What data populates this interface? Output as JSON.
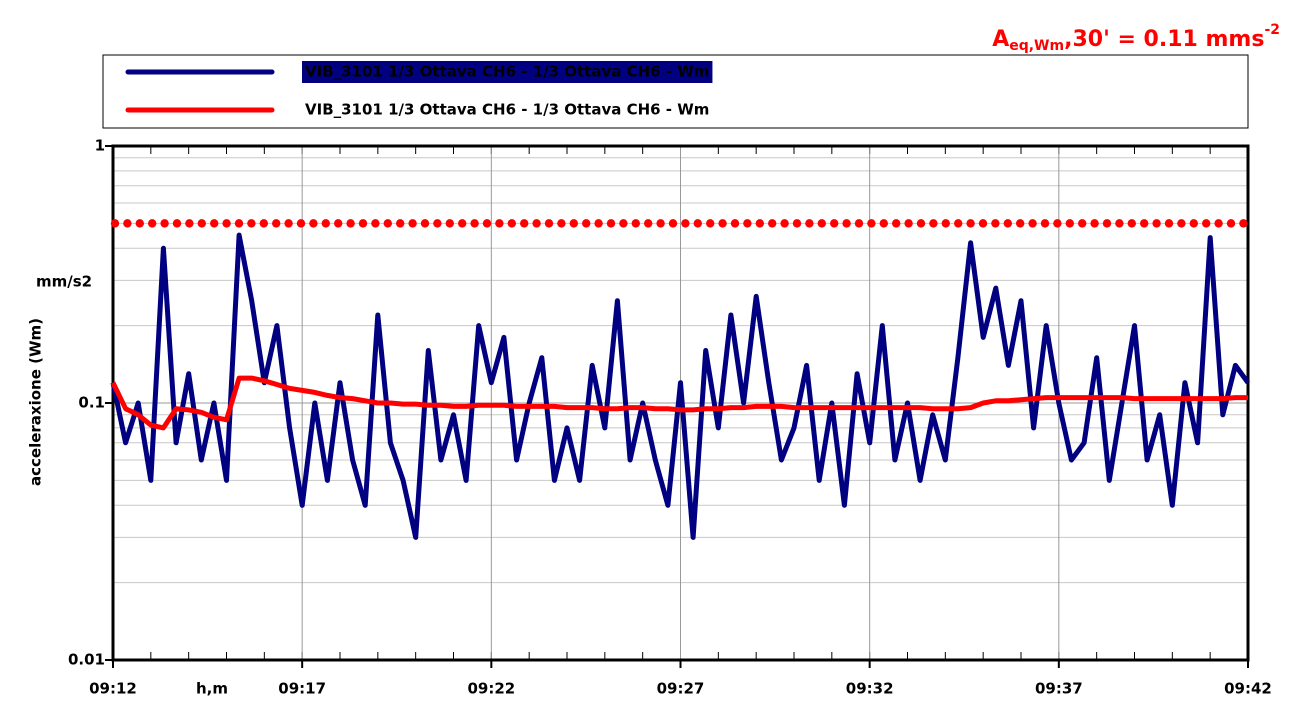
{
  "chart_data": {
    "type": "line",
    "annotation": {
      "main": "A",
      "sub": "eq,Wm",
      "rest": ",30' = 0.11 mms",
      "sup": "-2"
    },
    "y_label": "acceleraxione (Wm)",
    "y_unit": "mm/s2",
    "x_label": "h,m",
    "log_y": true,
    "grid": true,
    "ylim": [
      0.01,
      1
    ],
    "yticks": [
      0.01,
      0.1,
      1
    ],
    "xlim": [
      "09:12:00",
      "09:42:00"
    ],
    "xticks": [
      "09:12",
      "09:17",
      "09:22",
      "09:27",
      "09:32",
      "09:37",
      "09:42"
    ],
    "reference_line": {
      "value": 0.5,
      "color": "#ff0000"
    },
    "x": [
      "09:12:00",
      "09:12:20",
      "09:12:40",
      "09:13:00",
      "09:13:20",
      "09:13:40",
      "09:14:00",
      "09:14:20",
      "09:14:40",
      "09:15:00",
      "09:15:20",
      "09:15:40",
      "09:16:00",
      "09:16:20",
      "09:16:40",
      "09:17:00",
      "09:17:20",
      "09:17:40",
      "09:18:00",
      "09:18:20",
      "09:18:40",
      "09:19:00",
      "09:19:20",
      "09:19:40",
      "09:20:00",
      "09:20:20",
      "09:20:40",
      "09:21:00",
      "09:21:20",
      "09:21:40",
      "09:22:00",
      "09:22:20",
      "09:22:40",
      "09:23:00",
      "09:23:20",
      "09:23:40",
      "09:24:00",
      "09:24:20",
      "09:24:40",
      "09:25:00",
      "09:25:20",
      "09:25:40",
      "09:26:00",
      "09:26:20",
      "09:26:40",
      "09:27:00",
      "09:27:20",
      "09:27:40",
      "09:28:00",
      "09:28:20",
      "09:28:40",
      "09:29:00",
      "09:29:20",
      "09:29:40",
      "09:30:00",
      "09:30:20",
      "09:30:40",
      "09:31:00",
      "09:31:20",
      "09:31:40",
      "09:32:00",
      "09:32:20",
      "09:32:40",
      "09:33:00",
      "09:33:20",
      "09:33:40",
      "09:34:00",
      "09:34:20",
      "09:34:40",
      "09:35:00",
      "09:35:20",
      "09:35:40",
      "09:36:00",
      "09:36:20",
      "09:36:40",
      "09:37:00",
      "09:37:20",
      "09:37:40",
      "09:38:00",
      "09:38:20",
      "09:38:40",
      "09:39:00",
      "09:39:20",
      "09:39:40",
      "09:40:00",
      "09:40:20",
      "09:40:40",
      "09:41:00",
      "09:41:20",
      "09:41:40",
      "09:42:00"
    ],
    "series": [
      {
        "name": "VIB_3101 1/3 Ottava CH6 - 1/3 Ottava CH6 - Wm",
        "color": "#000080",
        "values": [
          0.12,
          0.07,
          0.1,
          0.05,
          0.4,
          0.07,
          0.13,
          0.06,
          0.1,
          0.05,
          0.45,
          0.25,
          0.12,
          0.2,
          0.08,
          0.04,
          0.1,
          0.05,
          0.12,
          0.06,
          0.04,
          0.22,
          0.07,
          0.05,
          0.03,
          0.16,
          0.06,
          0.09,
          0.05,
          0.2,
          0.12,
          0.18,
          0.06,
          0.1,
          0.15,
          0.05,
          0.08,
          0.05,
          0.14,
          0.08,
          0.25,
          0.06,
          0.1,
          0.06,
          0.04,
          0.12,
          0.03,
          0.16,
          0.08,
          0.22,
          0.1,
          0.26,
          0.12,
          0.06,
          0.08,
          0.14,
          0.05,
          0.1,
          0.04,
          0.13,
          0.07,
          0.2,
          0.06,
          0.1,
          0.05,
          0.09,
          0.06,
          0.15,
          0.42,
          0.18,
          0.28,
          0.14,
          0.25,
          0.08,
          0.2,
          0.1,
          0.06,
          0.07,
          0.15,
          0.05,
          0.1,
          0.2,
          0.06,
          0.09,
          0.04,
          0.12,
          0.07,
          0.44,
          0.09,
          0.14,
          0.12
        ]
      },
      {
        "name": "VIB_3101 1/3 Ottava CH6 - 1/3 Ottava CH6 - Wm",
        "color": "#ff0000",
        "values": [
          0.12,
          0.095,
          0.09,
          0.082,
          0.08,
          0.095,
          0.094,
          0.092,
          0.088,
          0.086,
          0.125,
          0.125,
          0.122,
          0.118,
          0.114,
          0.112,
          0.11,
          0.107,
          0.105,
          0.104,
          0.102,
          0.1,
          0.1,
          0.099,
          0.099,
          0.098,
          0.098,
          0.097,
          0.097,
          0.098,
          0.098,
          0.098,
          0.097,
          0.097,
          0.097,
          0.097,
          0.096,
          0.096,
          0.096,
          0.095,
          0.095,
          0.096,
          0.096,
          0.095,
          0.095,
          0.094,
          0.094,
          0.095,
          0.095,
          0.096,
          0.096,
          0.097,
          0.097,
          0.097,
          0.096,
          0.096,
          0.096,
          0.096,
          0.096,
          0.096,
          0.096,
          0.096,
          0.096,
          0.096,
          0.096,
          0.095,
          0.095,
          0.095,
          0.096,
          0.1,
          0.102,
          0.102,
          0.103,
          0.104,
          0.105,
          0.105,
          0.105,
          0.105,
          0.105,
          0.105,
          0.105,
          0.104,
          0.104,
          0.104,
          0.104,
          0.104,
          0.104,
          0.104,
          0.104,
          0.105,
          0.105
        ]
      }
    ],
    "legend": "top"
  }
}
